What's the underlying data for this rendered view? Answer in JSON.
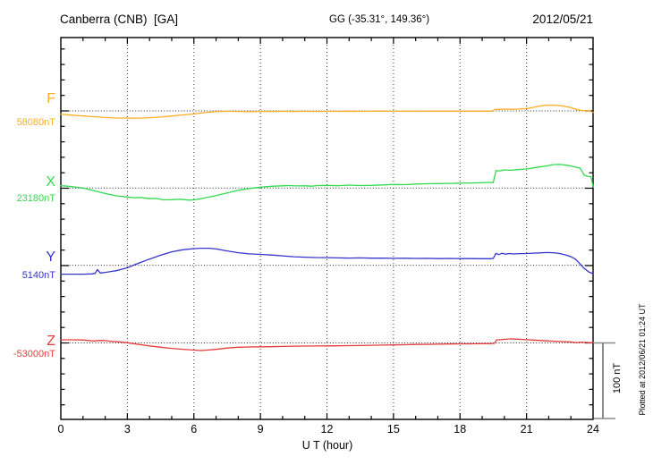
{
  "header": {
    "station": "Canberra (CNB)  [GA]",
    "coords": "GG (-35.31°, 149.36°)",
    "date": "2012/05/21"
  },
  "side": {
    "plotted_at": "Plotted at 2012/06/21 01:24 UT",
    "scale_label": "100 nT"
  },
  "axis": {
    "xlabel": "U T (hour)",
    "x_ticks": [
      0,
      3,
      6,
      9,
      12,
      15,
      18,
      21,
      24
    ],
    "xlim": [
      0,
      24
    ]
  },
  "chart_data": {
    "type": "line",
    "title": "Canberra (CNB) [GA] magnetogram for 2012/05/21",
    "xlabel": "U T (hour)",
    "xlim": [
      0,
      24
    ],
    "x_ticks": [
      0,
      3,
      6,
      9,
      12,
      15,
      18,
      21,
      24
    ],
    "grid": "dotted vertical every 3 h, dotted horizontal baseline per component",
    "unit": "nT",
    "scale_bar": {
      "label": "100 nT",
      "nT": 100
    },
    "minor_tick_nT": 20,
    "plotted_at": "Plotted at 2012/06/21 01:24 UT",
    "series": [
      {
        "name": "F",
        "label": "F",
        "baseline_label": "58080nT",
        "baseline_nT": 58080,
        "color": "#ffae24",
        "points": [
          [
            0,
            -4.5
          ],
          [
            0.3,
            -5
          ],
          [
            0.7,
            -6
          ],
          [
            1,
            -6.5
          ],
          [
            1.5,
            -7.5
          ],
          [
            2,
            -8.5
          ],
          [
            2.5,
            -9.2
          ],
          [
            3,
            -9.3
          ],
          [
            3.3,
            -9.5
          ],
          [
            3.7,
            -9.3
          ],
          [
            4,
            -8.8
          ],
          [
            4.5,
            -8
          ],
          [
            5,
            -6.6
          ],
          [
            5.5,
            -5.2
          ],
          [
            6,
            -4
          ],
          [
            6.3,
            -2.8
          ],
          [
            6.6,
            -1.8
          ],
          [
            7,
            -0.9
          ],
          [
            7.5,
            -0.5
          ],
          [
            8,
            -0.7
          ],
          [
            8.5,
            -1
          ],
          [
            9,
            -0.6
          ],
          [
            9.5,
            -0.8
          ],
          [
            10,
            -0.5
          ],
          [
            10.5,
            -0.8
          ],
          [
            11,
            -0.5
          ],
          [
            11.5,
            -0.7
          ],
          [
            12,
            -0.5
          ],
          [
            12.5,
            -0.6
          ],
          [
            13,
            -0.4
          ],
          [
            13.5,
            -0.6
          ],
          [
            14,
            -0.4
          ],
          [
            14.5,
            -0.2
          ],
          [
            15,
            -0.5
          ],
          [
            15.5,
            -0.4
          ],
          [
            16,
            -0.5
          ],
          [
            16.5,
            -0.3
          ],
          [
            17,
            -0.4
          ],
          [
            17.5,
            -0.3
          ],
          [
            18,
            -0.4
          ],
          [
            18.5,
            -0.3
          ],
          [
            19,
            -0.4
          ],
          [
            19.45,
            -0.4
          ],
          [
            19.6,
            2.2
          ],
          [
            19.8,
            2
          ],
          [
            20,
            2.3
          ],
          [
            20.3,
            2.1
          ],
          [
            20.6,
            2.3
          ],
          [
            21,
            3
          ],
          [
            21.3,
            4.5
          ],
          [
            21.6,
            6.3
          ],
          [
            21.9,
            7.3
          ],
          [
            22.1,
            7.5
          ],
          [
            22.4,
            7
          ],
          [
            22.7,
            6
          ],
          [
            23,
            4.2
          ],
          [
            23.3,
            1.5
          ],
          [
            23.5,
            0.5
          ],
          [
            23.7,
            0.3
          ],
          [
            23.85,
            0.2
          ],
          [
            23.95,
            -1.5
          ],
          [
            24,
            -2
          ]
        ]
      },
      {
        "name": "X",
        "label": "X",
        "baseline_label": "23180nT",
        "baseline_nT": 23180,
        "color": "#33d951",
        "points": [
          [
            0,
            3
          ],
          [
            0.3,
            2.4
          ],
          [
            0.6,
            1.5
          ],
          [
            1,
            0
          ],
          [
            1.5,
            -3.5
          ],
          [
            2,
            -7
          ],
          [
            2.5,
            -10
          ],
          [
            3,
            -11.6
          ],
          [
            3.3,
            -12.5
          ],
          [
            3.6,
            -12.1
          ],
          [
            4,
            -13.8
          ],
          [
            4.3,
            -13.3
          ],
          [
            4.6,
            -15.3
          ],
          [
            5,
            -15
          ],
          [
            5.4,
            -14.4
          ],
          [
            5.8,
            -15.6
          ],
          [
            6,
            -15.3
          ],
          [
            6.3,
            -13.9
          ],
          [
            6.6,
            -12.1
          ],
          [
            7,
            -9.8
          ],
          [
            7.5,
            -6.4
          ],
          [
            8,
            -2.9
          ],
          [
            8.5,
            -0.6
          ],
          [
            9,
            1.2
          ],
          [
            9.5,
            2.3
          ],
          [
            10,
            2.9
          ],
          [
            10.3,
            3.2
          ],
          [
            10.6,
            2.8
          ],
          [
            11,
            2.9
          ],
          [
            11.3,
            2.4
          ],
          [
            11.6,
            3.2
          ],
          [
            12,
            3.5
          ],
          [
            12.5,
            3
          ],
          [
            13,
            3.8
          ],
          [
            13.5,
            3.2
          ],
          [
            14,
            3.5
          ],
          [
            14.5,
            4
          ],
          [
            15,
            4.6
          ],
          [
            15.5,
            4.4
          ],
          [
            16,
            5.2
          ],
          [
            16.5,
            5.5
          ],
          [
            17,
            5.8
          ],
          [
            17.5,
            6
          ],
          [
            18,
            6.4
          ],
          [
            18.5,
            6.6
          ],
          [
            19,
            6.9
          ],
          [
            19.3,
            7.3
          ],
          [
            19.5,
            7
          ],
          [
            19.62,
            22.5
          ],
          [
            19.8,
            22.2
          ],
          [
            20,
            23.5
          ],
          [
            20.3,
            23
          ],
          [
            20.6,
            23.8
          ],
          [
            21,
            24.7
          ],
          [
            21.3,
            26
          ],
          [
            21.6,
            27.3
          ],
          [
            21.9,
            28.7
          ],
          [
            22.2,
            30.3
          ],
          [
            22.5,
            30.5
          ],
          [
            22.8,
            29.5
          ],
          [
            23,
            28.7
          ],
          [
            23.2,
            27
          ],
          [
            23.4,
            26
          ],
          [
            23.5,
            22
          ],
          [
            23.6,
            16.5
          ],
          [
            23.75,
            15.3
          ],
          [
            23.9,
            14.8
          ],
          [
            23.96,
            8
          ],
          [
            24,
            1.5
          ]
        ]
      },
      {
        "name": "Y",
        "label": "Y",
        "baseline_label": "5140nT",
        "baseline_nT": 5140,
        "color": "#3434cc",
        "points": [
          [
            0,
            -11.6
          ],
          [
            0.5,
            -11.6
          ],
          [
            1,
            -11.6
          ],
          [
            1.4,
            -11.2
          ],
          [
            1.55,
            -10.5
          ],
          [
            1.65,
            -5.5
          ],
          [
            1.78,
            -10
          ],
          [
            2,
            -9.2
          ],
          [
            2.5,
            -7
          ],
          [
            3,
            -3.2
          ],
          [
            3.5,
            2.5
          ],
          [
            4,
            8
          ],
          [
            4.5,
            13
          ],
          [
            5,
            17.3
          ],
          [
            5.5,
            20
          ],
          [
            6,
            21.5
          ],
          [
            6.3,
            22
          ],
          [
            6.7,
            22
          ],
          [
            7,
            21
          ],
          [
            7.5,
            18.5
          ],
          [
            8,
            16.2
          ],
          [
            8.5,
            14.7
          ],
          [
            9,
            14
          ],
          [
            9.5,
            13.2
          ],
          [
            10,
            12.1
          ],
          [
            10.5,
            11
          ],
          [
            11,
            10.4
          ],
          [
            11.5,
            10
          ],
          [
            12,
            9.8
          ],
          [
            12.5,
            9.5
          ],
          [
            13,
            9.3
          ],
          [
            13.5,
            9.5
          ],
          [
            14,
            9.1
          ],
          [
            14.5,
            9.3
          ],
          [
            15,
            8.9
          ],
          [
            15.5,
            9
          ],
          [
            16,
            8.8
          ],
          [
            16.5,
            8.9
          ],
          [
            17,
            8.6
          ],
          [
            17.5,
            8.8
          ],
          [
            18,
            8.6
          ],
          [
            18.5,
            8.5
          ],
          [
            19,
            8.4
          ],
          [
            19.35,
            8.4
          ],
          [
            19.5,
            8.8
          ],
          [
            19.62,
            15.3
          ],
          [
            19.75,
            13.8
          ],
          [
            19.9,
            15.5
          ],
          [
            20.05,
            14.3
          ],
          [
            20.2,
            15.2
          ],
          [
            20.4,
            14.6
          ],
          [
            20.7,
            15
          ],
          [
            21,
            15.2
          ],
          [
            21.3,
            15.6
          ],
          [
            21.6,
            16
          ],
          [
            21.9,
            16.4
          ],
          [
            22.2,
            16.2
          ],
          [
            22.5,
            15.2
          ],
          [
            22.8,
            13
          ],
          [
            23,
            11
          ],
          [
            23.2,
            8
          ],
          [
            23.45,
            0.5
          ],
          [
            23.6,
            -4
          ],
          [
            23.8,
            -8.5
          ],
          [
            24,
            -11
          ]
        ]
      },
      {
        "name": "Z",
        "label": "Z",
        "baseline_label": "-53000nT",
        "baseline_nT": -53000,
        "color": "#e63c3c",
        "points": [
          [
            0,
            4
          ],
          [
            0.5,
            4
          ],
          [
            1,
            3.8
          ],
          [
            1.3,
            3
          ],
          [
            1.5,
            2.5
          ],
          [
            1.8,
            3.2
          ],
          [
            2,
            3
          ],
          [
            2.3,
            2
          ],
          [
            2.6,
            1.5
          ],
          [
            3,
            0.2
          ],
          [
            3.5,
            -1.8
          ],
          [
            4,
            -3.8
          ],
          [
            4.5,
            -5.5
          ],
          [
            5,
            -7
          ],
          [
            5.5,
            -8.2
          ],
          [
            6,
            -9.3
          ],
          [
            6.3,
            -9.8
          ],
          [
            6.6,
            -9.3
          ],
          [
            7,
            -8.3
          ],
          [
            7.5,
            -6.6
          ],
          [
            8,
            -5.6
          ],
          [
            8.5,
            -5.2
          ],
          [
            9,
            -5
          ],
          [
            9.5,
            -4.8
          ],
          [
            10,
            -4.5
          ],
          [
            10.5,
            -4.2
          ],
          [
            11,
            -4
          ],
          [
            11.5,
            -3.9
          ],
          [
            12,
            -3.8
          ],
          [
            12.5,
            -3.7
          ],
          [
            13,
            -3.5
          ],
          [
            13.5,
            -3.3
          ],
          [
            14,
            -3
          ],
          [
            14.5,
            -2.8
          ],
          [
            15,
            -2.5
          ],
          [
            15.5,
            -2.3
          ],
          [
            16,
            -2
          ],
          [
            16.5,
            -1.8
          ],
          [
            17,
            -1.6
          ],
          [
            17.5,
            -1.4
          ],
          [
            18,
            -1.2
          ],
          [
            18.5,
            -1.1
          ],
          [
            19,
            -1
          ],
          [
            19.4,
            -0.8
          ],
          [
            19.55,
            -0.5
          ],
          [
            19.65,
            4
          ],
          [
            19.8,
            4.2
          ],
          [
            20,
            4.6
          ],
          [
            20.3,
            5.3
          ],
          [
            20.6,
            4.8
          ],
          [
            21,
            4.2
          ],
          [
            21.3,
            3.7
          ],
          [
            21.6,
            3.2
          ],
          [
            22,
            2.6
          ],
          [
            22.5,
            1.9
          ],
          [
            23,
            1.3
          ],
          [
            23.25,
            0.3
          ],
          [
            23.45,
            1
          ],
          [
            23.65,
            0.7
          ],
          [
            23.85,
            0.4
          ],
          [
            24,
            0.3
          ]
        ]
      }
    ],
    "colors": {
      "frame": "#000000",
      "grid": "#3a3a3a",
      "baseline_dots": "#222222",
      "scale_bar": "#8a8a8a",
      "background": "#ffffff"
    }
  }
}
